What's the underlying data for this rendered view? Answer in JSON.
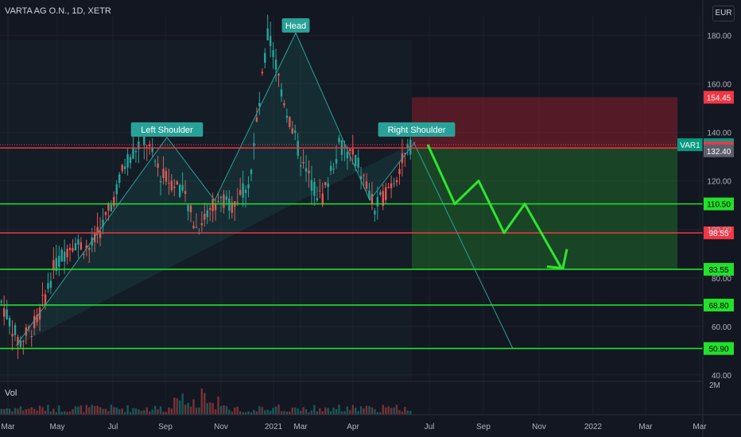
{
  "header": {
    "title": "VARTA AG O.N., 1D, XETR"
  },
  "currency": "EUR",
  "volume_label": "Vol",
  "chart_data": {
    "type": "candlestick",
    "symbol": "VAR1",
    "y_axis": {
      "ticks": [
        "180.00",
        "160.00",
        "140.00",
        "120.00",
        "100.00",
        "80.00",
        "60.00",
        "40.00"
      ],
      "range": [
        38,
        188
      ]
    },
    "volume_axis_tick": "2M",
    "x_axis": {
      "ticks": [
        "Mar",
        "May",
        "Jul",
        "Sep",
        "Nov",
        "2021",
        "Mar",
        "Apr",
        "Jul",
        "Sep",
        "Nov",
        "2022",
        "Mar",
        "Mar"
      ]
    },
    "price_path": [
      {
        "date": "2020-03",
        "price": 70
      },
      {
        "date": "2020-03-20",
        "price": 53
      },
      {
        "date": "2020-04",
        "price": 62
      },
      {
        "date": "2020-05",
        "price": 85
      },
      {
        "date": "2020-06",
        "price": 95
      },
      {
        "date": "2020-06-20",
        "price": 92
      },
      {
        "date": "2020-07",
        "price": 106
      },
      {
        "date": "2020-08-15",
        "price": 128
      },
      {
        "date": "2020-09-01",
        "price": 138
      },
      {
        "date": "2020-09-20",
        "price": 122
      },
      {
        "date": "2020-10",
        "price": 118
      },
      {
        "date": "2020-11",
        "price": 100
      },
      {
        "date": "2020-11-20",
        "price": 112
      },
      {
        "date": "2020-12",
        "price": 110
      },
      {
        "date": "2021-01",
        "price": 122
      },
      {
        "date": "2021-01-15",
        "price": 181
      },
      {
        "date": "2021-02",
        "price": 150
      },
      {
        "date": "2021-02-20",
        "price": 125
      },
      {
        "date": "2021-03",
        "price": 112
      },
      {
        "date": "2021-03-20",
        "price": 135
      },
      {
        "date": "2021-04",
        "price": 128
      },
      {
        "date": "2021-04-25",
        "price": 108
      },
      {
        "date": "2021-05",
        "price": 120
      },
      {
        "date": "2021-05-25",
        "price": 134
      }
    ],
    "pattern": {
      "type": "head-and-shoulders",
      "labels": [
        "Left Shoulder",
        "Head",
        "Right Shoulder"
      ]
    },
    "horizontal_levels": [
      {
        "price": 154.45,
        "label": "154.45",
        "color": "#f23645"
      },
      {
        "price": 134.9,
        "label": "134.90",
        "color": "#089981"
      },
      {
        "price": 133.55,
        "label": "133.55",
        "color": "#f23645"
      },
      {
        "price": 132.4,
        "label": "132.40",
        "color": "#5d606b"
      },
      {
        "price": 110.5,
        "label": "110.50",
        "color": "#22e02b"
      },
      {
        "price": 98.55,
        "label": "98.55",
        "color": "#f23645"
      },
      {
        "price": 83.55,
        "label": "83.55",
        "color": "#22e02b"
      },
      {
        "price": 68.8,
        "label": "68.80",
        "color": "#22e02b"
      },
      {
        "price": 50.9,
        "label": "50.90",
        "color": "#22e02b"
      }
    ],
    "symbol_tag": "VAR1",
    "position": {
      "entry": 133.55,
      "stop": 154.45,
      "target": 83.55
    },
    "projection": {
      "label": "forecast zigzag",
      "points": [
        134.9,
        110.5,
        120,
        98.55,
        110.5,
        84
      ]
    }
  },
  "colors": {
    "background": "#131722",
    "up": "#26a69a",
    "down": "#ef5350",
    "green_line": "#22e02b",
    "red_line": "#f23645",
    "pattern": "#2aa198"
  }
}
